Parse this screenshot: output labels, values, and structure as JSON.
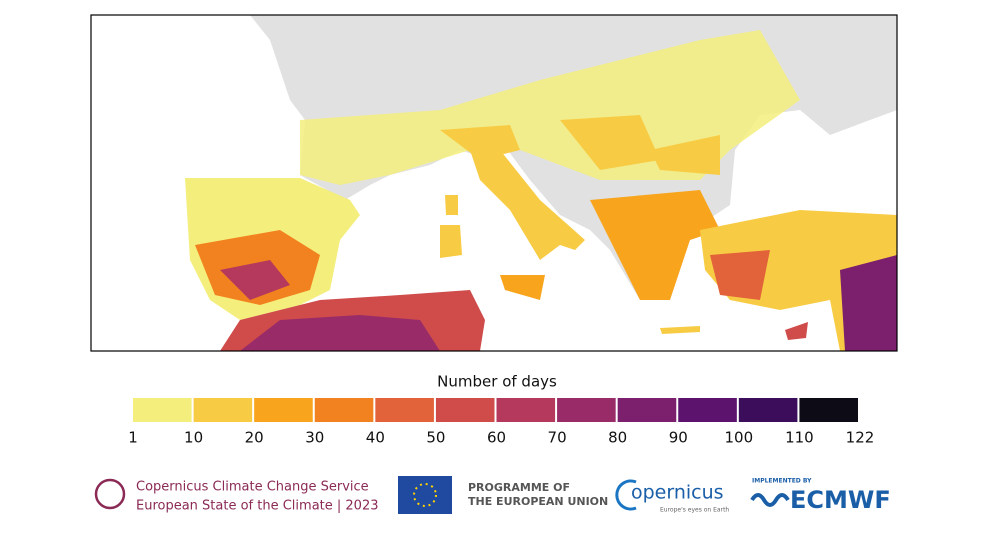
{
  "legend": {
    "title": "Number of days",
    "ticks": [
      1,
      10,
      20,
      30,
      40,
      50,
      60,
      70,
      80,
      90,
      100,
      110,
      122
    ],
    "colors": [
      "#f4ee7c",
      "#f7cc44",
      "#f8a41c",
      "#f2821f",
      "#e2623a",
      "#cf4c4b",
      "#b5395c",
      "#982b68",
      "#7c1f6d",
      "#5c136d",
      "#3b0d5a",
      "#0d0b16"
    ]
  },
  "footer": {
    "c3s": {
      "line1": "Copernicus Climate Change Service",
      "line2": "European State of the Climate | 2023"
    },
    "eu": {
      "line1": "PROGRAMME OF",
      "line2": "THE EUROPEAN UNION"
    },
    "copernicus": {
      "name": "opernicus",
      "tagline": "Europe's eyes on Earth"
    },
    "ecmwf": {
      "prefix": "IMPLEMENTED BY",
      "name": "ECMWF"
    }
  }
}
